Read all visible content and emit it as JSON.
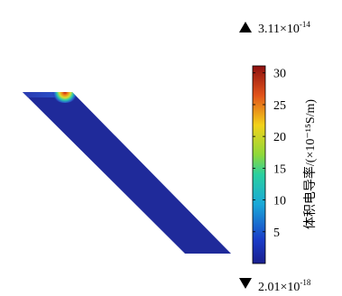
{
  "chart_data": {
    "type": "heatmap",
    "title": "",
    "colorbar": {
      "label": "体积电导率/(×10⁻¹⁵S/m)",
      "ticks": [
        5,
        10,
        15,
        20,
        25,
        30
      ],
      "range": [
        0,
        31.1
      ],
      "colormap": "rainbow"
    },
    "max_marker": {
      "text": "3.11×10",
      "exp": "-14"
    },
    "min_marker": {
      "text": "2.01×10",
      "exp": "-18"
    },
    "field": {
      "background_value": 0.3,
      "hotspot_value": 31.1,
      "hotspot_location": "top-right corner of upper edge"
    }
  }
}
